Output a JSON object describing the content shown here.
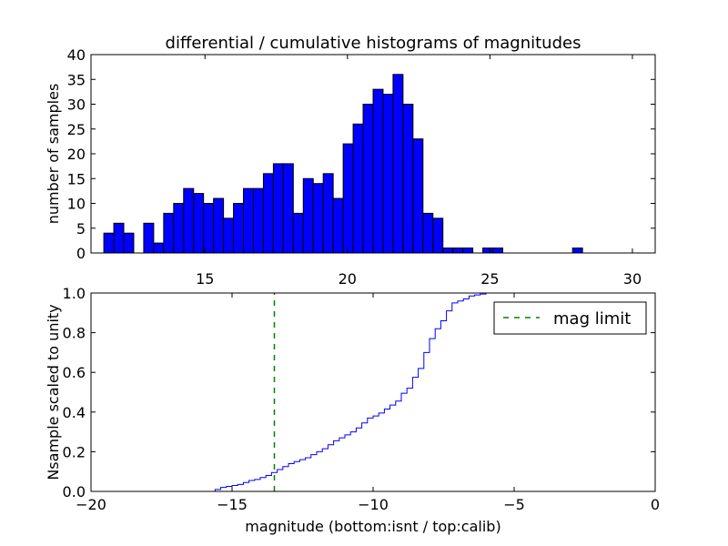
{
  "colors": {
    "bar_fill": "#0000ff",
    "bar_edge": "#000000",
    "cdf_line": "#0000ff",
    "mag_limit_line": "#008000"
  },
  "chart_data": [
    {
      "type": "bar",
      "title": "differential / cumulative histograms of magnitudes",
      "xlabel": "",
      "ylabel": "number of samples",
      "xlim": [
        11,
        30.8
      ],
      "ylim": [
        0,
        40
      ],
      "xticks": [
        15,
        20,
        25,
        30
      ],
      "yticks": [
        0,
        5,
        10,
        15,
        20,
        25,
        30,
        35,
        40
      ],
      "bin_width": 0.35,
      "bin_starts": [
        11.45,
        11.8,
        12.15,
        12.5,
        12.85,
        13.2,
        13.55,
        13.9,
        14.25,
        14.6,
        14.95,
        15.3,
        15.65,
        16.0,
        16.35,
        16.7,
        17.05,
        17.4,
        17.75,
        18.1,
        18.45,
        18.8,
        19.15,
        19.5,
        19.85,
        20.2,
        20.55,
        20.9,
        21.25,
        21.6,
        21.95,
        22.3,
        22.65,
        23.0,
        23.35,
        23.7,
        24.05,
        24.4,
        24.75,
        25.1,
        25.45,
        25.8,
        26.15,
        26.5,
        26.85,
        27.2,
        27.55,
        27.9,
        28.25,
        28.6,
        28.95,
        29.3,
        29.65,
        30.0
      ],
      "values": [
        4,
        6,
        4,
        0,
        6,
        2,
        8,
        10,
        13,
        12,
        10,
        11,
        7,
        10,
        13,
        13,
        16,
        18,
        18,
        8,
        15,
        14,
        16,
        11,
        22,
        26,
        30,
        33,
        32,
        36,
        30,
        23,
        8,
        7,
        1,
        1,
        1,
        0,
        1,
        1,
        0,
        0,
        0,
        0,
        0,
        0,
        0,
        1,
        0,
        0,
        0,
        0,
        0,
        0
      ]
    },
    {
      "type": "line",
      "title": "",
      "xlabel": "magnitude (bottom:isnt / top:calib)",
      "ylabel": "Nsample scaled to unity",
      "xlim": [
        -20,
        0
      ],
      "ylim": [
        0,
        1.0
      ],
      "xticks": [
        -20,
        -15,
        -10,
        -5,
        0
      ],
      "xtick_labels": [
        "−20",
        "−15",
        "−10",
        "−5",
        "0"
      ],
      "yticks": [
        0.0,
        0.2,
        0.4,
        0.6,
        0.8,
        1.0
      ],
      "ytick_labels": [
        "0.0",
        "0.2",
        "0.4",
        "0.6",
        "0.8",
        "1.0"
      ],
      "series": [
        {
          "name": "cumulative",
          "style": "steps",
          "x": [
            -20,
            -15.6,
            -15.4,
            -15.2,
            -15.0,
            -14.8,
            -14.6,
            -14.4,
            -14.2,
            -14.0,
            -13.8,
            -13.6,
            -13.4,
            -13.2,
            -13.0,
            -12.8,
            -12.6,
            -12.4,
            -12.2,
            -12.0,
            -11.8,
            -11.6,
            -11.4,
            -11.2,
            -11.0,
            -10.8,
            -10.6,
            -10.4,
            -10.2,
            -10.0,
            -9.8,
            -9.6,
            -9.4,
            -9.2,
            -9.0,
            -8.8,
            -8.6,
            -8.4,
            -8.2,
            -8.0,
            -7.8,
            -7.6,
            -7.4,
            -7.2,
            -7.0,
            -6.8,
            -6.6,
            -6.4,
            -6.2,
            -6.0,
            0
          ],
          "y": [
            0.0,
            0.01,
            0.02,
            0.025,
            0.03,
            0.035,
            0.045,
            0.055,
            0.06,
            0.07,
            0.08,
            0.095,
            0.11,
            0.125,
            0.14,
            0.15,
            0.16,
            0.17,
            0.185,
            0.2,
            0.215,
            0.235,
            0.255,
            0.27,
            0.285,
            0.3,
            0.32,
            0.345,
            0.37,
            0.38,
            0.395,
            0.415,
            0.435,
            0.455,
            0.495,
            0.52,
            0.575,
            0.62,
            0.7,
            0.77,
            0.82,
            0.86,
            0.91,
            0.95,
            0.96,
            0.97,
            0.985,
            0.99,
            0.995,
            1.0,
            1.0
          ]
        },
        {
          "name": "mag limit",
          "style": "dashed-vertical",
          "x": [
            -13.5,
            -13.5
          ],
          "y": [
            0.0,
            1.0
          ]
        }
      ],
      "legend": {
        "entries": [
          "mag limit"
        ],
        "placement": "top-right"
      }
    }
  ]
}
